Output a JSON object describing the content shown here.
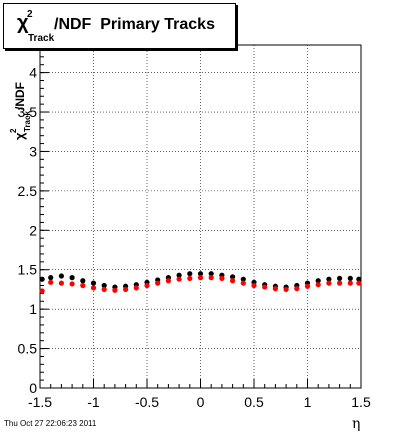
{
  "chart_data": {
    "type": "scatter",
    "title": {
      "chi": "χ",
      "sup": "2",
      "sub": "Track",
      "rest": "/NDF  Primary Tracks"
    },
    "ylabel": {
      "chi": "χ",
      "sup": "2",
      "sub": "Track",
      "rest": "/NDF"
    },
    "xlabel": "η",
    "xlim": [
      -1.5,
      1.5
    ],
    "ylim": [
      0,
      4.35
    ],
    "grid": true,
    "xticks": [
      "-1.5",
      "-1",
      "-0.5",
      "0",
      "0.5",
      "1",
      "1.5"
    ],
    "xtick_values": [
      -1.5,
      -1,
      -0.5,
      0,
      0.5,
      1,
      1.5
    ],
    "yticks": [
      "0",
      "0.5",
      "1",
      "1.5",
      "2",
      "2.5",
      "3",
      "3.5",
      "4"
    ],
    "ytick_values": [
      0,
      0.5,
      1,
      1.5,
      2,
      2.5,
      3,
      3.5,
      4
    ],
    "series": [
      {
        "color": "#000000",
        "x": [
          -1.48,
          -1.4,
          -1.3,
          -1.2,
          -1.1,
          -1.0,
          -0.9,
          -0.8,
          -0.7,
          -0.6,
          -0.5,
          -0.4,
          -0.3,
          -0.2,
          -0.1,
          0.0,
          0.1,
          0.2,
          0.3,
          0.4,
          0.5,
          0.6,
          0.7,
          0.8,
          0.9,
          1.0,
          1.1,
          1.2,
          1.3,
          1.4,
          1.48
        ],
        "y": [
          1.38,
          1.4,
          1.42,
          1.4,
          1.36,
          1.33,
          1.3,
          1.28,
          1.29,
          1.31,
          1.34,
          1.37,
          1.4,
          1.43,
          1.45,
          1.45,
          1.45,
          1.43,
          1.41,
          1.38,
          1.34,
          1.31,
          1.29,
          1.28,
          1.3,
          1.33,
          1.36,
          1.38,
          1.39,
          1.39,
          1.38
        ]
      },
      {
        "color": "#ff0000",
        "x": [
          -1.48,
          -1.4,
          -1.3,
          -1.2,
          -1.1,
          -1.0,
          -0.9,
          -0.8,
          -0.7,
          -0.6,
          -0.5,
          -0.4,
          -0.3,
          -0.2,
          -0.1,
          0.0,
          0.1,
          0.2,
          0.3,
          0.4,
          0.5,
          0.6,
          0.7,
          0.8,
          0.9,
          1.0,
          1.1,
          1.2,
          1.3,
          1.4,
          1.48
        ],
        "y": [
          1.23,
          1.34,
          1.33,
          1.32,
          1.3,
          1.27,
          1.25,
          1.24,
          1.25,
          1.27,
          1.3,
          1.33,
          1.36,
          1.38,
          1.39,
          1.4,
          1.4,
          1.39,
          1.36,
          1.33,
          1.3,
          1.28,
          1.26,
          1.25,
          1.26,
          1.29,
          1.31,
          1.33,
          1.33,
          1.33,
          1.33
        ]
      }
    ]
  },
  "footer": {
    "datestamp": "Thu Oct 27 22:06:23 2011"
  }
}
